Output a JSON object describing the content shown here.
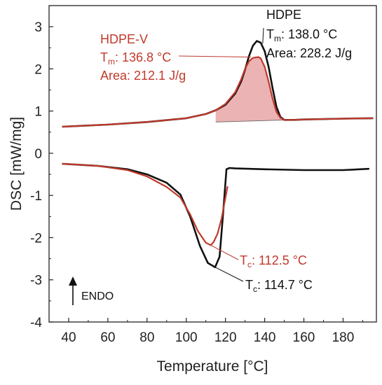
{
  "chart_data": {
    "type": "line",
    "title": "",
    "xlabel": "Temperature [°C]",
    "ylabel": "DSC [mW/mg]",
    "xlim": [
      30,
      197
    ],
    "ylim": [
      -4,
      3.5
    ],
    "x_ticks": [
      40,
      60,
      80,
      100,
      120,
      140,
      160,
      180
    ],
    "y_ticks": [
      -4,
      -3,
      -2,
      -1,
      0,
      1,
      2,
      3
    ],
    "grid": false,
    "legend": "none",
    "series": [
      {
        "name": "HDPE",
        "color": "#111111",
        "segments": [
          {
            "x": [
              37,
              60,
              80,
              100,
              110,
              115,
              120,
              125,
              128,
              130,
              132,
              134,
              136,
              138,
              140,
              142,
              144,
              146,
              148,
              150,
              155,
              160,
              180,
              195
            ],
            "y": [
              0.63,
              0.68,
              0.74,
              0.83,
              0.93,
              1.02,
              1.15,
              1.42,
              1.7,
              1.98,
              2.3,
              2.55,
              2.66,
              2.62,
              2.42,
              2.05,
              1.55,
              1.1,
              0.86,
              0.79,
              0.79,
              0.8,
              0.82,
              0.83
            ]
          },
          {
            "x": [
              37,
              55,
              70,
              80,
              90,
              97,
              102,
              107,
              111,
              114.7,
              117,
              119,
              120.5,
              122,
              125,
              140,
              160,
              180,
              193
            ],
            "y": [
              -0.25,
              -0.3,
              -0.38,
              -0.5,
              -0.7,
              -0.98,
              -1.5,
              -2.2,
              -2.6,
              -2.7,
              -2.45,
              -1.3,
              -0.38,
              -0.35,
              -0.36,
              -0.38,
              -0.4,
              -0.4,
              -0.37
            ]
          }
        ]
      },
      {
        "name": "HDPE-V",
        "color": "#c0392b",
        "segments": [
          {
            "x": [
              37,
              60,
              80,
              100,
              110,
              115,
              120,
              125,
              128,
              130,
              132,
              134,
              136.8,
              138,
              140,
              142,
              144,
              146,
              148,
              150,
              155,
              160,
              180,
              195
            ],
            "y": [
              0.63,
              0.68,
              0.74,
              0.83,
              0.93,
              1.02,
              1.17,
              1.45,
              1.75,
              2.0,
              2.18,
              2.26,
              2.28,
              2.25,
              2.05,
              1.7,
              1.3,
              0.98,
              0.84,
              0.79,
              0.79,
              0.8,
              0.82,
              0.83
            ]
          },
          {
            "x": [
              37,
              55,
              70,
              80,
              90,
              97,
              102,
              106,
              110,
              112.5,
              114,
              116,
              118,
              120,
              121
            ],
            "y": [
              -0.25,
              -0.3,
              -0.4,
              -0.55,
              -0.8,
              -1.05,
              -1.45,
              -1.85,
              -2.12,
              -2.18,
              -2.1,
              -1.9,
              -1.55,
              -1.05,
              -0.8
            ]
          }
        ]
      }
    ],
    "peak_fill": {
      "color": "#e8a6a6",
      "baseline": {
        "x": [
          115,
          152
        ],
        "y": [
          0.74,
          0.79
        ]
      }
    },
    "endo_label": "ENDO",
    "annotations": {
      "hdpe": {
        "name": "HDPE",
        "tm_prefix": "T",
        "tm_sub": "m",
        "tm_value": ": 138.0 °C",
        "area": "Area: 228.2 J/g",
        "anchor": {
          "x": 139,
          "y": 2.6
        }
      },
      "hdpev": {
        "name": "HDPE-V",
        "tm_prefix": "T",
        "tm_sub": "m",
        "tm_value": ": 136.8 °C",
        "area": "Area: 212.1 J/g",
        "anchor": {
          "x": 133,
          "y": 2.28
        }
      },
      "tc_hdpev": {
        "prefix": "T",
        "sub": "c",
        "value": ": 112.5 °C",
        "anchor": {
          "x": 112.5,
          "y": -2.18
        }
      },
      "tc_hdpe": {
        "prefix": "T",
        "sub": "c",
        "value": ": 114.7 °C",
        "anchor": {
          "x": 114.7,
          "y": -2.7
        }
      }
    }
  }
}
